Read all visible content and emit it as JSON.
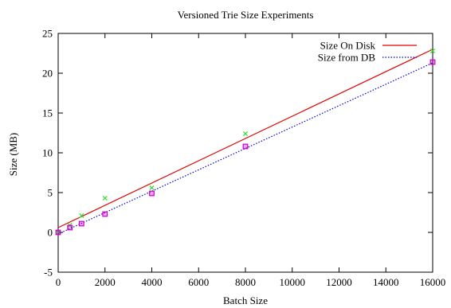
{
  "chart_data": {
    "type": "scatter",
    "title": "Versioned Trie Size Experiments",
    "xlabel": "Batch Size",
    "ylabel": "Size (MB)",
    "xlim": [
      0,
      16000
    ],
    "ylim": [
      -5,
      25
    ],
    "xticks": [
      0,
      2000,
      4000,
      6000,
      8000,
      10000,
      12000,
      14000,
      16000
    ],
    "yticks": [
      -5,
      0,
      5,
      10,
      15,
      20,
      25
    ],
    "grid": false,
    "legend_position": "top-right",
    "series": [
      {
        "name": "Size On Disk",
        "kind": "fit-line",
        "style": "solid",
        "color": "#e00000",
        "x": [
          0,
          16000
        ],
        "y": [
          0.6,
          23.0
        ]
      },
      {
        "name": "Size from DB",
        "kind": "fit-line",
        "style": "dotted",
        "color": "#0000dd",
        "x": [
          0,
          16000
        ],
        "y": [
          -0.2,
          21.3
        ]
      },
      {
        "kind": "points",
        "marker": "x",
        "color": "#33dd33",
        "x": [
          0,
          500,
          1000,
          2000,
          4000,
          8000,
          16000
        ],
        "y": [
          0.0,
          0.9,
          2.1,
          4.3,
          5.6,
          12.4,
          22.8
        ]
      },
      {
        "kind": "points",
        "marker": "square",
        "color": "#cc00cc",
        "x": [
          0,
          500,
          1000,
          2000,
          4000,
          8000,
          16000
        ],
        "y": [
          0.0,
          0.6,
          1.1,
          2.3,
          4.9,
          10.8,
          21.4
        ]
      }
    ]
  }
}
